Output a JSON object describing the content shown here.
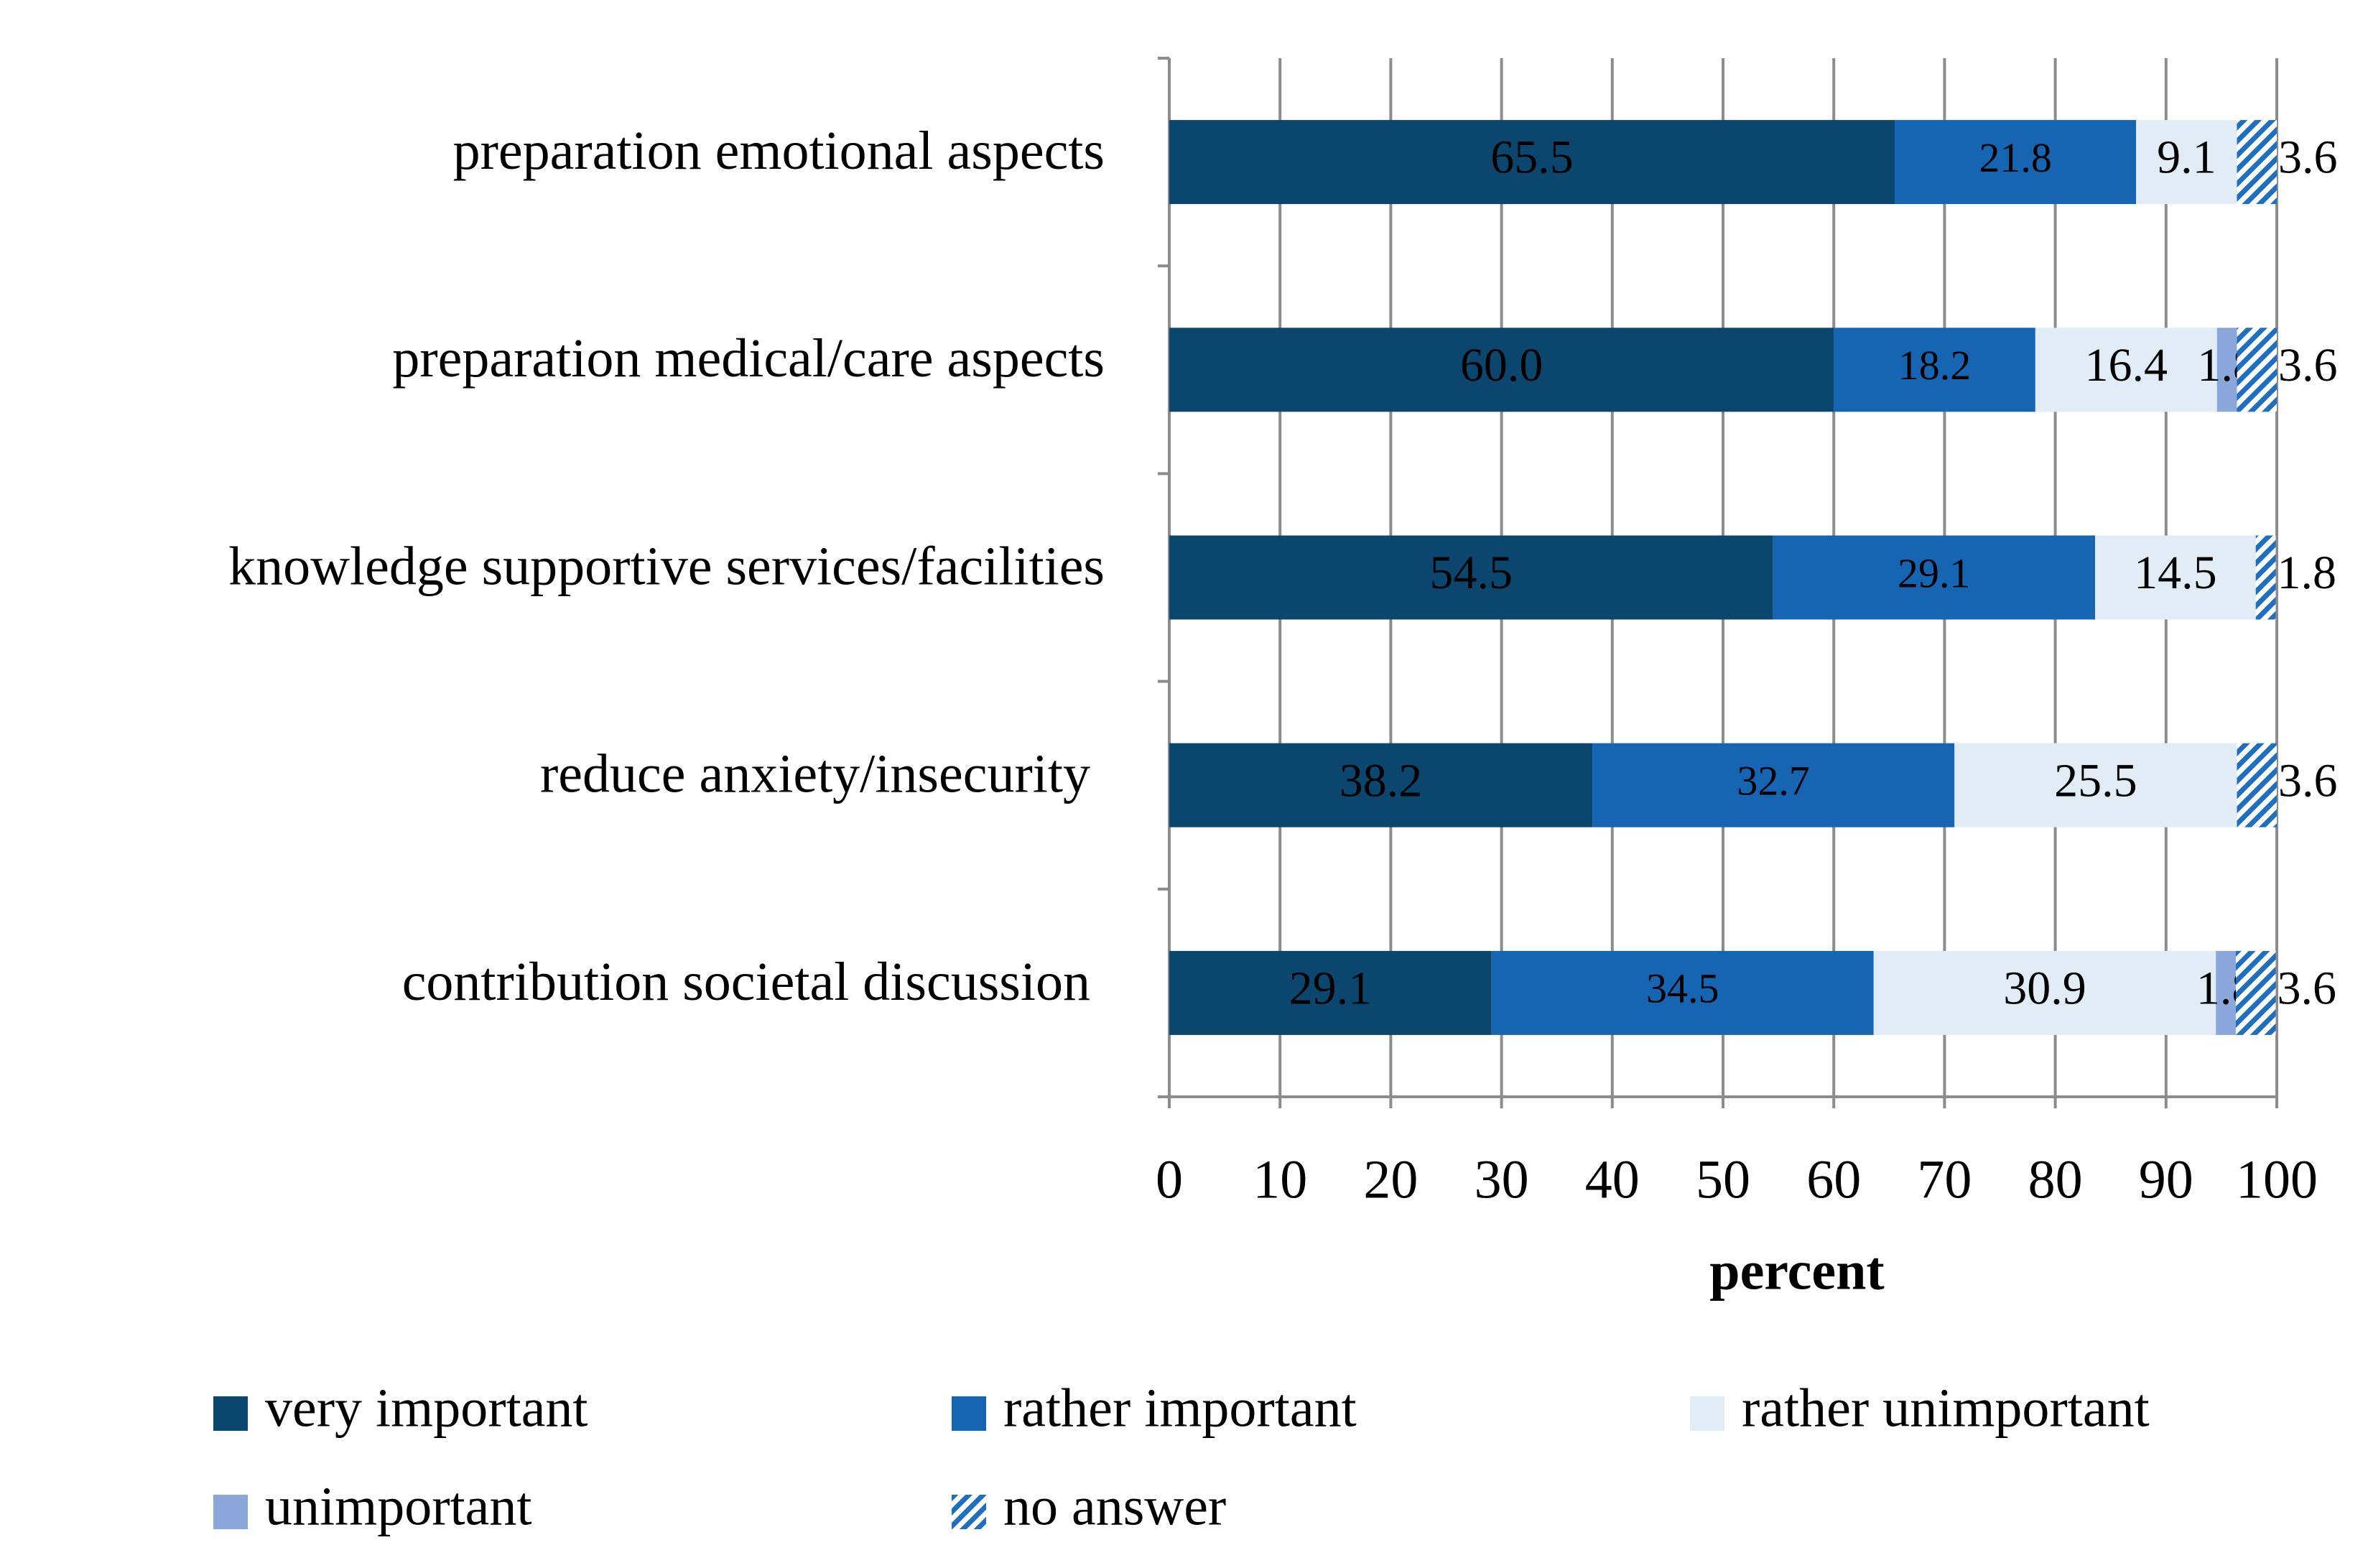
{
  "chart_data": {
    "type": "stacked-bar-horizontal",
    "categories": [
      "preparation emotional aspects",
      "preparation medical/care aspects",
      "knowledge supportive services/facilities",
      "reduce anxiety/insecurity",
      "contribution societal discussion"
    ],
    "series": [
      {
        "name": "very important",
        "color": "#0b466f",
        "values": [
          65.5,
          60.0,
          54.5,
          38.2,
          29.1
        ],
        "value_labels": [
          "65.5",
          "60.0",
          "54.5",
          "38.2",
          "29.1"
        ]
      },
      {
        "name": "rather important",
        "color": "#1565b3",
        "values": [
          21.8,
          18.2,
          29.1,
          32.7,
          34.5
        ]
      },
      {
        "name": "rather unimportant",
        "color": "#e2ecf6",
        "values": [
          9.1,
          16.4,
          14.5,
          25.5,
          30.9
        ]
      },
      {
        "name": "unimportant",
        "color": "#8ba6da",
        "values": [
          null,
          1.8,
          null,
          null,
          1.8
        ]
      },
      {
        "name": "no answer",
        "color": "#1f6fc1",
        "hatched": true,
        "values": [
          3.6,
          3.6,
          1.8,
          3.6,
          3.6
        ]
      }
    ],
    "xlabel": "percent",
    "xlim": [
      0,
      100
    ],
    "xticks": [
      0,
      10,
      20,
      30,
      40,
      50,
      60,
      70,
      80,
      90,
      100
    ],
    "grid": true
  }
}
